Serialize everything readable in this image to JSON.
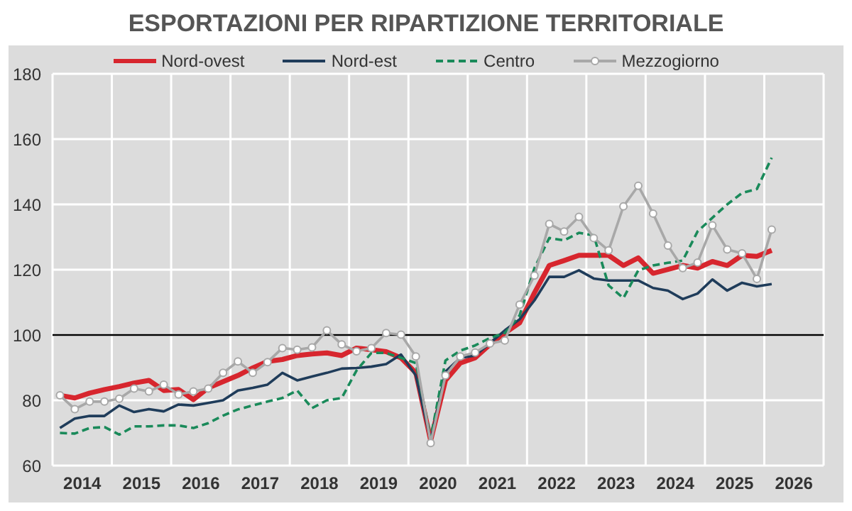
{
  "chart_data": {
    "type": "line",
    "title": "ESPORTAZIONI PER RIPARTIZIONE TERRITORIALE",
    "x": [
      2014.125,
      2014.375,
      2014.625,
      2014.875,
      2015.125,
      2015.375,
      2015.625,
      2015.875,
      2016.125,
      2016.375,
      2016.625,
      2016.875,
      2017.125,
      2017.375,
      2017.625,
      2017.875,
      2018.125,
      2018.375,
      2018.625,
      2018.875,
      2019.125,
      2019.375,
      2019.625,
      2019.875,
      2020.125,
      2020.375,
      2020.625,
      2020.875,
      2021.125,
      2021.375,
      2021.625,
      2021.875,
      2022.125,
      2022.375,
      2022.625,
      2022.875,
      2023.125,
      2023.375,
      2023.625,
      2023.875,
      2024.125,
      2024.375,
      2024.625,
      2024.875,
      2025.125,
      2025.375,
      2025.625,
      2025.875,
      2026.125
    ],
    "series": [
      {
        "name": "Nord-ovest",
        "color": "#d7262e",
        "line_style": "solid",
        "marker": "none",
        "values": [
          81.5,
          80.7,
          82.2,
          83.3,
          84.2,
          85.3,
          86.1,
          83,
          83.3,
          80.2,
          83.8,
          85.7,
          87.6,
          89.9,
          91.9,
          92.5,
          93.7,
          94.2,
          94.5,
          93.7,
          96,
          95.5,
          94.9,
          93,
          88.4,
          67.7,
          86.1,
          91.4,
          93,
          97.1,
          100.6,
          103.7,
          112.9,
          121.3,
          122.8,
          124.4,
          124.4,
          124.4,
          121.3,
          123.6,
          118.9,
          120.1,
          121.3,
          120.5,
          122.5,
          121.3,
          124.4,
          124.1,
          125.9
        ]
      },
      {
        "name": "Nord-est",
        "color": "#1f3c5a",
        "line_style": "solid",
        "marker": "none",
        "values": [
          71.5,
          74.4,
          75.2,
          75.2,
          78.4,
          76.4,
          77.3,
          76.6,
          78.7,
          78.4,
          79.2,
          80,
          83,
          83.8,
          84.8,
          88.4,
          86.1,
          87.3,
          88.4,
          89.7,
          89.9,
          90.3,
          91.1,
          94,
          87.6,
          67.7,
          88.8,
          93,
          93.7,
          97.5,
          101.4,
          104.8,
          110.6,
          117.8,
          117.8,
          119.8,
          117.3,
          116.7,
          116.7,
          116.7,
          114.4,
          113.6,
          111,
          112.7,
          117,
          113.6,
          116,
          114.9,
          115.6
        ]
      },
      {
        "name": "Centro",
        "color": "#1a8a5a",
        "line_style": "dashed",
        "marker": "none",
        "values": [
          70,
          69.8,
          71.5,
          71.8,
          69.5,
          72,
          72,
          72.3,
          72.3,
          71.5,
          73,
          75.3,
          77.2,
          78.4,
          79.6,
          80.7,
          83,
          77.6,
          80,
          80.7,
          89.1,
          94.5,
          94.5,
          93,
          91.4,
          68.4,
          92.2,
          95.2,
          96.8,
          99.1,
          100.6,
          106,
          120.5,
          129.7,
          129,
          131.3,
          130.5,
          115.2,
          111.3,
          119.8,
          121.3,
          122.1,
          122.8,
          131.7,
          135.9,
          140,
          143.5,
          144.7,
          154.3
        ]
      },
      {
        "name": "Mezzogiorno",
        "color": "#a8a8a8",
        "line_style": "solid",
        "marker": "circle",
        "values": [
          81.5,
          77.3,
          79.6,
          79.6,
          80.5,
          83.6,
          82.7,
          84.8,
          81.8,
          82.7,
          83.6,
          88.4,
          91.9,
          88.4,
          91.7,
          96,
          95.5,
          96.2,
          101.4,
          97.1,
          95,
          96,
          100.6,
          100.1,
          93.4,
          66.9,
          87.6,
          93.4,
          94.6,
          97.4,
          98.3,
          109.3,
          118.2,
          134,
          131.7,
          136.2,
          129.7,
          125.9,
          139.4,
          145.7,
          137.2,
          127.4,
          120.5,
          122.2,
          133.6,
          126.2,
          125,
          117.2,
          132.3
        ]
      }
    ],
    "xlim": [
      2014,
      2027
    ],
    "xticks": [
      {
        "value": 2014.5,
        "label": "2014"
      },
      {
        "value": 2015,
        "label": null
      },
      {
        "value": 2015.5,
        "label": "2015"
      },
      {
        "value": 2016,
        "label": null
      },
      {
        "value": 2016.5,
        "label": "2016"
      },
      {
        "value": 2017,
        "label": null
      },
      {
        "value": 2017.5,
        "label": "2017"
      },
      {
        "value": 2018,
        "label": null
      },
      {
        "value": 2018.5,
        "label": "2018"
      },
      {
        "value": 2019,
        "label": null
      },
      {
        "value": 2019.5,
        "label": "2019"
      },
      {
        "value": 2020,
        "label": null
      },
      {
        "value": 2020.5,
        "label": "2020"
      },
      {
        "value": 2021,
        "label": null
      },
      {
        "value": 2021.5,
        "label": "2021"
      },
      {
        "value": 2022,
        "label": null
      },
      {
        "value": 2022.5,
        "label": "2022"
      },
      {
        "value": 2023,
        "label": null
      },
      {
        "value": 2023.5,
        "label": "2023"
      },
      {
        "value": 2024,
        "label": null
      },
      {
        "value": 2024.5,
        "label": "2024"
      },
      {
        "value": 2025,
        "label": null
      },
      {
        "value": 2025.5,
        "label": "2025"
      },
      {
        "value": 2026,
        "label": null
      },
      {
        "value": 2026.5,
        "label": "2026"
      }
    ],
    "ylim": [
      60,
      180
    ],
    "yticks": [
      60,
      80,
      100,
      120,
      140,
      160,
      180
    ],
    "ref_lines": [
      {
        "axis": "y",
        "value": 100,
        "color": "#000000"
      }
    ],
    "grid": true,
    "legend": "top"
  }
}
